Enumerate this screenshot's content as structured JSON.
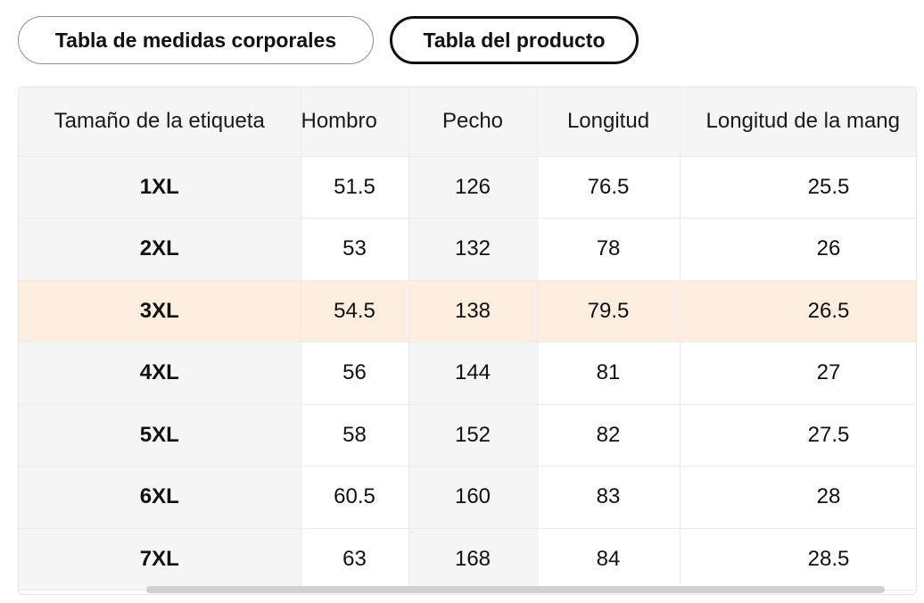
{
  "tabs": [
    {
      "label": "Tabla de medidas corporales",
      "active": false
    },
    {
      "label": "Tabla del producto",
      "active": true
    }
  ],
  "table": {
    "headers": [
      "Tamaño de la etiqueta",
      "Hombro",
      "Pecho",
      "Longitud",
      "Longitud de la mang"
    ],
    "rows": [
      [
        "1XL",
        "51.5",
        "126",
        "76.5",
        "25.5"
      ],
      [
        "2XL",
        "53",
        "132",
        "78",
        "26"
      ],
      [
        "3XL",
        "54.5",
        "138",
        "79.5",
        "26.5"
      ],
      [
        "4XL",
        "56",
        "144",
        "81",
        "27"
      ],
      [
        "5XL",
        "58",
        "152",
        "82",
        "27.5"
      ],
      [
        "6XL",
        "60.5",
        "160",
        "83",
        "28"
      ],
      [
        "7XL",
        "63",
        "168",
        "84",
        "28.5"
      ]
    ],
    "highlighted_row": "3XL"
  },
  "colors": {
    "highlight_row": "#fdeee0",
    "header_bg": "#f5f5f5",
    "active_tab_border": "#111111"
  }
}
